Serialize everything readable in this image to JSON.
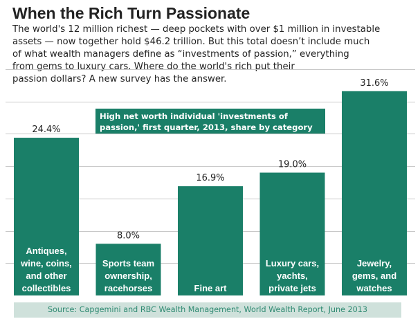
{
  "header": {
    "title": "When the Rich Turn Passionate",
    "description_lines": [
      "The world's 12 million richest — deep pockets with over $1 million in investable",
      "assets — now together hold $46.2 trillion. But this total doesn’t include much",
      "of what wealth managers define as “investments of passion,” everything",
      "from gems to luxury cars. Where do the world's rich put their",
      "passion dollars? A new survey has the answer."
    ]
  },
  "annotation_lines": [
    "High net worth individual 'investments of",
    "passion,' first quarter, 2013, share by category"
  ],
  "source": "Source: Capgemini and RBC Wealth Management, World Wealth Report, June 2013",
  "colors": {
    "bar": "#1a7f68",
    "grid": "#c8c8c8",
    "source_band": "#cfe1db",
    "source_text": "#2f8a72"
  },
  "chart_data": {
    "type": "bar",
    "categories": [
      [
        "Antiques,",
        "wine, coins,",
        "and other",
        "collectibles"
      ],
      [
        "Sports team",
        "ownership,",
        "racehorses"
      ],
      [
        "Fine art"
      ],
      [
        "Luxury cars,",
        "yachts,",
        "private jets"
      ],
      [
        "Jewelry,",
        "gems, and",
        "watches"
      ]
    ],
    "values": [
      24.4,
      8.0,
      16.9,
      19.0,
      31.6
    ],
    "value_labels": [
      "24.4%",
      "8.0%",
      "16.9%",
      "19.0%",
      "31.6%"
    ],
    "ylim": [
      0,
      35
    ],
    "grid": true,
    "legend": "none"
  }
}
